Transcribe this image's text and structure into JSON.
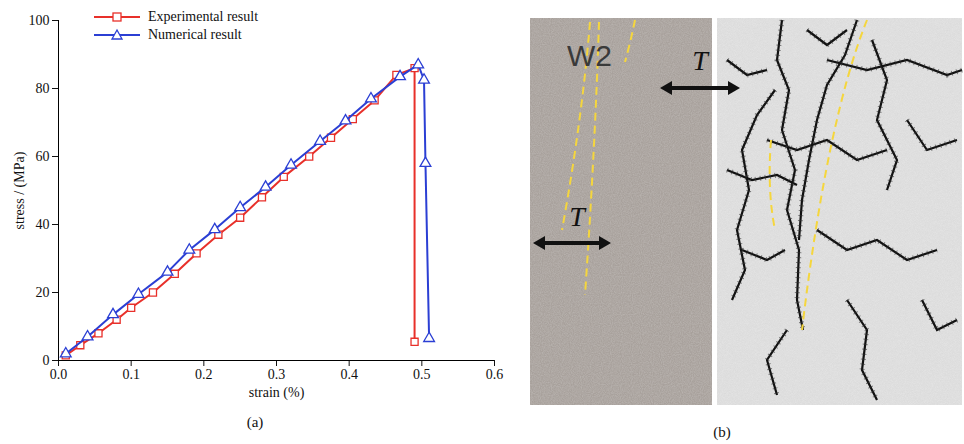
{
  "chart_data": {
    "type": "line",
    "x_label": "strain (%)",
    "y_label": "stress / (MPa)",
    "caption": "(a)",
    "xlim": [
      0,
      0.6
    ],
    "xticks": [
      {
        "value": 0,
        "label": "0.0"
      },
      0.1,
      0.2,
      0.3,
      0.4,
      0.5,
      0.6
    ],
    "ylim": [
      0,
      100
    ],
    "yticks": [
      0,
      20,
      40,
      60,
      80,
      100
    ],
    "legend": "top-left",
    "series": [
      {
        "name": "Experimental result",
        "color": "#e8302a",
        "marker": "square",
        "x": [
          0.01,
          0.03,
          0.055,
          0.08,
          0.1,
          0.13,
          0.16,
          0.19,
          0.22,
          0.25,
          0.28,
          0.31,
          0.345,
          0.375,
          0.405,
          0.435,
          0.465,
          0.49,
          0.49
        ],
        "values": [
          1.5,
          4.5,
          8,
          12,
          15.5,
          20,
          25.5,
          31.5,
          37,
          42,
          48,
          54,
          60,
          65.5,
          71,
          76.5,
          84,
          86,
          5.5
        ]
      },
      {
        "name": "Numerical result",
        "color": "#2b3fd4",
        "marker": "triangle",
        "x": [
          0.01,
          0.04,
          0.075,
          0.11,
          0.15,
          0.18,
          0.215,
          0.25,
          0.285,
          0.32,
          0.36,
          0.395,
          0.43,
          0.47,
          0.495,
          0.503,
          0.505,
          0.51
        ],
        "values": [
          2,
          7,
          13.5,
          19.5,
          26,
          32.5,
          38.5,
          45,
          51,
          57.5,
          64.5,
          70.5,
          77,
          83.5,
          87,
          82.5,
          58,
          6.5
        ]
      }
    ]
  },
  "figure_b": {
    "caption": "(b)",
    "specimen_label": "W2",
    "annotations": [
      "T",
      "T"
    ]
  }
}
